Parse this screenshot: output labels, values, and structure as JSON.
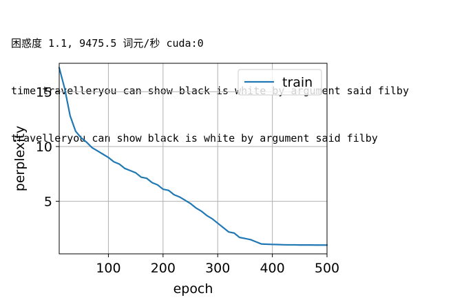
{
  "output": {
    "lines": [
      "困惑度 1.1, 9475.5 词元/秒 cuda:0",
      "time travelleryou can show black is white by argument said filby",
      "travelleryou can show black is white by argument said filby"
    ]
  },
  "chart_data": {
    "type": "line",
    "title": "",
    "xlabel": "epoch",
    "ylabel": "perplexity",
    "xlim": [
      10,
      500
    ],
    "ylim": [
      0.2,
      17.6
    ],
    "xticks": [
      100,
      200,
      300,
      400,
      500
    ],
    "yticks": [
      5,
      10,
      15
    ],
    "grid": true,
    "legend": "top-right",
    "series": [
      {
        "name": "train",
        "color": "#1f77b4",
        "x": [
          10,
          20,
          30,
          40,
          50,
          60,
          70,
          80,
          90,
          100,
          110,
          120,
          130,
          140,
          150,
          160,
          170,
          180,
          190,
          200,
          210,
          220,
          230,
          240,
          250,
          260,
          270,
          280,
          290,
          300,
          310,
          320,
          330,
          340,
          350,
          360,
          370,
          380,
          390,
          400,
          410,
          420,
          430,
          440,
          450,
          460,
          470,
          480,
          490,
          500
        ],
        "y": [
          17.2,
          15.3,
          12.8,
          11.4,
          10.8,
          10.4,
          9.9,
          9.6,
          9.3,
          9.0,
          8.6,
          8.4,
          8.0,
          7.8,
          7.6,
          7.2,
          7.1,
          6.7,
          6.5,
          6.1,
          6.0,
          5.6,
          5.4,
          5.1,
          4.8,
          4.4,
          4.1,
          3.7,
          3.4,
          3.0,
          2.6,
          2.2,
          2.1,
          1.7,
          1.6,
          1.5,
          1.3,
          1.1,
          1.08,
          1.06,
          1.05,
          1.03,
          1.02,
          1.02,
          1.01,
          1.01,
          1.01,
          1.0,
          1.0,
          1.0
        ]
      }
    ]
  }
}
